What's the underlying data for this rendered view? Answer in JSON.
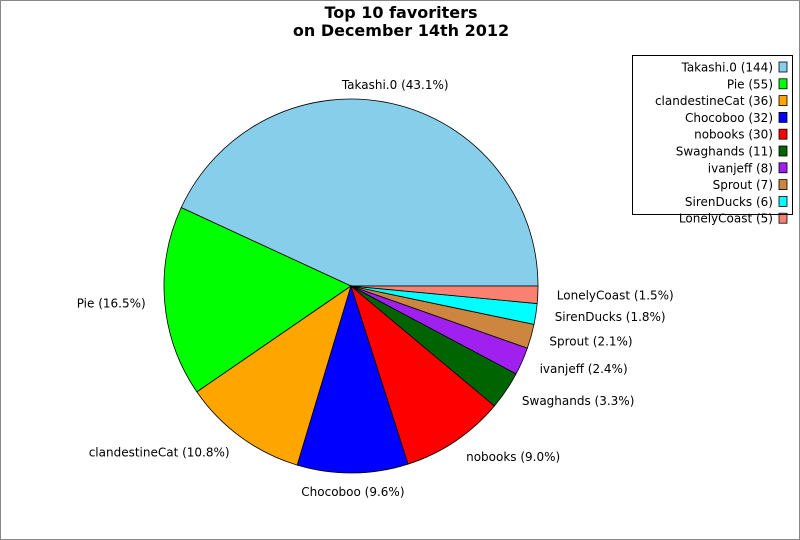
{
  "chart_data": {
    "type": "pie",
    "title": [
      "Top 10 favoriters",
      "on December 14th 2012"
    ],
    "start_angle_deg": 0,
    "direction": "counterclockwise",
    "legend_position": "top-right",
    "slices": [
      {
        "name": "Takashi.0",
        "value": 144,
        "percent": "43.1%",
        "color": "#87CEEB"
      },
      {
        "name": "Pie",
        "value": 55,
        "percent": "16.5%",
        "color": "#00FF00"
      },
      {
        "name": "clandestineCat",
        "value": 36,
        "percent": "10.8%",
        "color": "#FFA500"
      },
      {
        "name": "Chocoboo",
        "value": 32,
        "percent": "9.6%",
        "color": "#0000FF"
      },
      {
        "name": "nobooks",
        "value": 30,
        "percent": "9.0%",
        "color": "#FF0000"
      },
      {
        "name": "Swaghands",
        "value": 11,
        "percent": "3.3%",
        "color": "#006400"
      },
      {
        "name": "ivanjeff",
        "value": 8,
        "percent": "2.4%",
        "color": "#A020F0"
      },
      {
        "name": "Sprout",
        "value": 7,
        "percent": "2.1%",
        "color": "#CD853F"
      },
      {
        "name": "SirenDucks",
        "value": 6,
        "percent": "1.8%",
        "color": "#00FFFF"
      },
      {
        "name": "LonelyCoast",
        "value": 5,
        "percent": "1.5%",
        "color": "#FA8072"
      }
    ]
  }
}
